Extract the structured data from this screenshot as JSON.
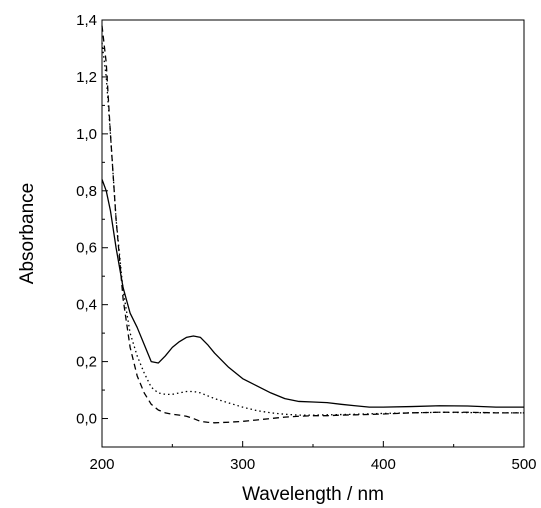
{
  "chart_data": {
    "type": "line",
    "title": "",
    "xlabel": "Wavelength / nm",
    "ylabel": "Absorbance",
    "xlim": [
      200,
      500
    ],
    "ylim": [
      -0.1,
      1.4
    ],
    "grid": false,
    "x_ticks": [
      {
        "value": 200,
        "label": "200"
      },
      {
        "value": 300,
        "label": "300"
      },
      {
        "value": 400,
        "label": "400"
      },
      {
        "value": 500,
        "label": "500"
      }
    ],
    "y_ticks": [
      {
        "value": 0.0,
        "label": "0,0"
      },
      {
        "value": 0.2,
        "label": "0,2"
      },
      {
        "value": 0.4,
        "label": "0,4"
      },
      {
        "value": 0.6,
        "label": "0,6"
      },
      {
        "value": 0.8,
        "label": "0,8"
      },
      {
        "value": 1.0,
        "label": "1,0"
      },
      {
        "value": 1.2,
        "label": "1,2"
      },
      {
        "value": 1.4,
        "label": "1,4"
      }
    ],
    "series": [
      {
        "style": "solid",
        "color": "#000000",
        "x": [
          200,
          203,
          206,
          210,
          215,
          220,
          225,
          230,
          235,
          240,
          245,
          250,
          255,
          260,
          265,
          270,
          275,
          280,
          290,
          300,
          310,
          320,
          330,
          340,
          350,
          360,
          370,
          380,
          390,
          400,
          420,
          440,
          460,
          480,
          500
        ],
        "y": [
          0.84,
          0.8,
          0.73,
          0.6,
          0.46,
          0.37,
          0.32,
          0.26,
          0.2,
          0.195,
          0.22,
          0.25,
          0.27,
          0.285,
          0.29,
          0.285,
          0.26,
          0.23,
          0.18,
          0.14,
          0.115,
          0.09,
          0.07,
          0.06,
          0.058,
          0.056,
          0.05,
          0.045,
          0.04,
          0.04,
          0.042,
          0.045,
          0.044,
          0.04,
          0.04
        ]
      },
      {
        "style": "dotted",
        "color": "#000000",
        "x": [
          200,
          203,
          206,
          210,
          215,
          220,
          225,
          230,
          235,
          240,
          245,
          250,
          255,
          260,
          265,
          270,
          275,
          280,
          290,
          300,
          310,
          320,
          330,
          340,
          350,
          360,
          370,
          380,
          400,
          420,
          440,
          460,
          480,
          500
        ],
        "y": [
          1.32,
          1.2,
          1.0,
          0.7,
          0.45,
          0.3,
          0.22,
          0.16,
          0.11,
          0.09,
          0.085,
          0.085,
          0.09,
          0.095,
          0.095,
          0.09,
          0.08,
          0.07,
          0.055,
          0.04,
          0.028,
          0.02,
          0.015,
          0.012,
          0.012,
          0.013,
          0.014,
          0.015,
          0.018,
          0.02,
          0.022,
          0.021,
          0.02,
          0.02
        ]
      },
      {
        "style": "dashed",
        "color": "#000000",
        "x": [
          200,
          203,
          206,
          210,
          215,
          220,
          225,
          230,
          235,
          240,
          245,
          250,
          255,
          260,
          265,
          270,
          275,
          280,
          290,
          300,
          310,
          320,
          330,
          340,
          350,
          360,
          370,
          380,
          400,
          420,
          440,
          460,
          480,
          500
        ],
        "y": [
          1.38,
          1.25,
          1.0,
          0.7,
          0.42,
          0.25,
          0.15,
          0.09,
          0.05,
          0.03,
          0.02,
          0.015,
          0.012,
          0.008,
          0.0,
          -0.01,
          -0.013,
          -0.015,
          -0.013,
          -0.01,
          -0.005,
          0.0,
          0.005,
          0.008,
          0.01,
          0.01,
          0.012,
          0.013,
          0.016,
          0.02,
          0.022,
          0.022,
          0.02,
          0.02
        ]
      }
    ]
  }
}
